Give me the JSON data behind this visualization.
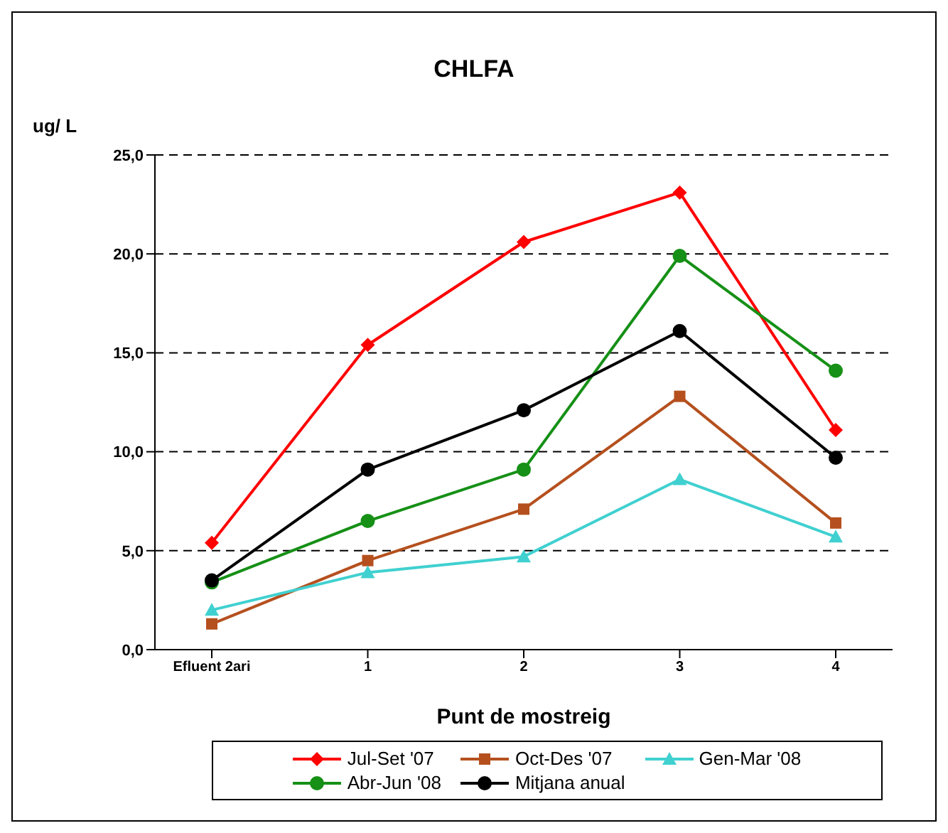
{
  "chart_data": {
    "type": "line",
    "title": "CHLFA",
    "ylabel": "ug/ L",
    "xlabel": "Punt de mostreig",
    "categories": [
      "Efluent 2ari",
      "1",
      "2",
      "3",
      "4"
    ],
    "series": [
      {
        "name": "Jul-Set '07",
        "color": "#ff0000",
        "marker": "diamond",
        "values": [
          5.4,
          15.4,
          20.6,
          23.1,
          11.1
        ]
      },
      {
        "name": "Oct-Des '07",
        "color": "#b5501e",
        "marker": "square",
        "values": [
          1.3,
          4.5,
          7.1,
          12.8,
          6.4
        ]
      },
      {
        "name": "Gen-Mar '08",
        "color": "#40d0d0",
        "marker": "triangle",
        "values": [
          2.0,
          3.9,
          4.7,
          8.6,
          5.7
        ]
      },
      {
        "name": "Abr-Jun '08",
        "color": "#169016",
        "marker": "circle",
        "values": [
          3.4,
          6.5,
          9.1,
          19.9,
          14.1
        ]
      },
      {
        "name": "Mitjana anual",
        "color": "#000000",
        "marker": "circle",
        "values": [
          3.5,
          9.1,
          12.1,
          16.1,
          9.7
        ]
      }
    ],
    "ylim": [
      0,
      25
    ],
    "yticks": [
      {
        "value": 0,
        "label": "0,0"
      },
      {
        "value": 5,
        "label": "5,0"
      },
      {
        "value": 10,
        "label": "10,0"
      },
      {
        "value": 15,
        "label": "15,0"
      },
      {
        "value": 20,
        "label": "20,0"
      },
      {
        "value": 25,
        "label": "25,0"
      }
    ],
    "grid": "y",
    "line_style": "solid",
    "legend": "bottom"
  }
}
